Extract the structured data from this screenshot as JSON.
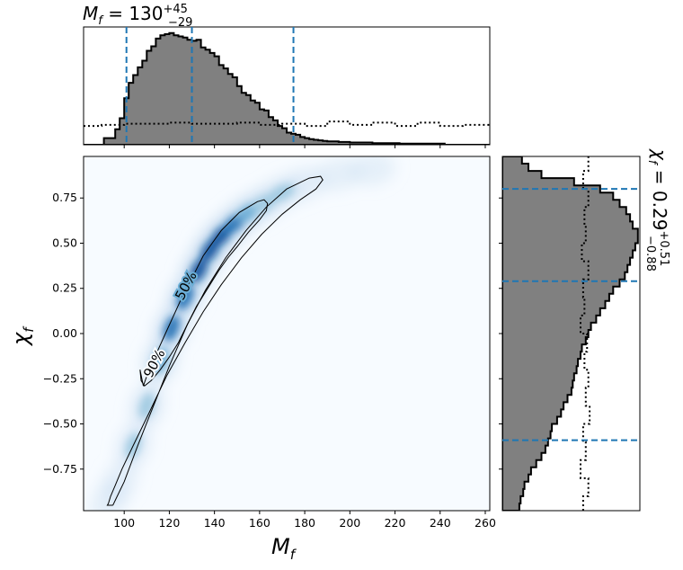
{
  "chart_data": {
    "type": "heatmap",
    "top_title": {
      "base": "M",
      "sub": "f",
      "eq": " = 130",
      "sup": "+45",
      "low": "−29"
    },
    "right_title": {
      "base": "χ",
      "sub": "f",
      "eq": " = 0.29",
      "sup": "+0.51",
      "low": "−0.88"
    },
    "xlabel": {
      "base": "M",
      "sub": "f"
    },
    "ylabel": {
      "base": "χ",
      "sub": "f"
    },
    "xlim": [
      82,
      262
    ],
    "ylim": [
      -0.98,
      0.98
    ],
    "xticks": [
      100,
      120,
      140,
      160,
      180,
      200,
      220,
      240,
      260
    ],
    "yticks": [
      -0.75,
      -0.5,
      -0.25,
      0.0,
      0.25,
      0.5,
      0.75
    ],
    "ytick_labels": [
      "−0.75",
      "−0.50",
      "−0.25",
      "0.00",
      "0.25",
      "0.50",
      "0.75"
    ],
    "mass_quantiles": [
      101,
      130,
      175
    ],
    "spin_quantiles": [
      -0.59,
      0.29,
      0.8
    ],
    "contours": [
      {
        "label": "50%",
        "x": [
          108.5,
          111,
          115,
          119,
          123,
          127,
          131,
          135,
          139,
          143,
          147,
          151,
          155,
          159,
          162,
          163.5,
          163,
          160,
          155,
          150,
          146,
          142,
          139,
          136,
          132,
          128,
          124,
          120,
          116,
          112,
          109,
          107.5,
          107,
          108.5
        ],
        "y": [
          -0.29,
          -0.2,
          -0.09,
          0.02,
          0.13,
          0.24,
          0.33,
          0.43,
          0.5,
          0.57,
          0.62,
          0.67,
          0.7,
          0.73,
          0.74,
          0.72,
          0.68,
          0.63,
          0.56,
          0.48,
          0.42,
          0.35,
          0.29,
          0.23,
          0.15,
          0.05,
          -0.05,
          -0.13,
          -0.2,
          -0.26,
          -0.29,
          -0.26,
          -0.2,
          -0.29
        ]
      },
      {
        "label": "90%",
        "x": [
          95,
          100,
          106,
          113,
          120,
          128,
          136,
          145,
          154,
          163,
          172,
          182,
          187,
          188,
          185,
          178,
          170,
          161,
          152,
          143,
          135,
          127,
          119,
          111,
          104,
          99,
          96,
          94,
          93,
          92.5,
          95
        ],
        "y": [
          -0.95,
          -0.82,
          -0.62,
          -0.4,
          -0.18,
          0.05,
          0.24,
          0.42,
          0.57,
          0.7,
          0.8,
          0.86,
          0.87,
          0.85,
          0.8,
          0.74,
          0.66,
          0.55,
          0.42,
          0.27,
          0.12,
          -0.05,
          -0.23,
          -0.44,
          -0.62,
          -0.75,
          -0.84,
          -0.9,
          -0.94,
          -0.95,
          -0.95
        ]
      }
    ],
    "density_ridge": [
      {
        "x": 93,
        "y": -0.93,
        "w": 0.02
      },
      {
        "x": 98,
        "y": -0.82,
        "w": 0.06
      },
      {
        "x": 104,
        "y": -0.62,
        "w": 0.18
      },
      {
        "x": 110,
        "y": -0.4,
        "w": 0.3
      },
      {
        "x": 116,
        "y": -0.15,
        "w": 0.55
      },
      {
        "x": 121,
        "y": 0.03,
        "w": 0.7
      },
      {
        "x": 127,
        "y": 0.2,
        "w": 0.8
      },
      {
        "x": 133,
        "y": 0.35,
        "w": 0.95
      },
      {
        "x": 138,
        "y": 0.46,
        "w": 1.0
      },
      {
        "x": 143,
        "y": 0.54,
        "w": 0.9
      },
      {
        "x": 149,
        "y": 0.61,
        "w": 0.65
      },
      {
        "x": 155,
        "y": 0.67,
        "w": 0.45
      },
      {
        "x": 162,
        "y": 0.72,
        "w": 0.25
      },
      {
        "x": 170,
        "y": 0.78,
        "w": 0.12
      },
      {
        "x": 180,
        "y": 0.83,
        "w": 0.06
      },
      {
        "x": 195,
        "y": 0.88,
        "w": 0.03
      },
      {
        "x": 210,
        "y": 0.91,
        "w": 0.015
      }
    ],
    "mass_hist": {
      "edges": [
        82,
        91,
        96,
        98,
        100,
        102,
        104,
        106,
        108,
        110,
        112,
        114,
        116,
        118,
        120,
        122,
        124,
        126,
        128,
        130,
        132,
        134,
        136,
        138,
        140,
        142,
        144,
        146,
        148,
        150,
        152,
        154,
        156,
        158,
        160,
        162,
        164,
        166,
        168,
        170,
        172,
        174,
        176,
        178,
        180,
        182,
        184,
        186,
        188,
        190,
        195,
        200,
        210,
        222,
        242,
        262
      ],
      "counts": [
        0,
        0.06,
        0.14,
        0.24,
        0.42,
        0.56,
        0.63,
        0.7,
        0.76,
        0.85,
        0.89,
        0.96,
        0.99,
        1.0,
        1.01,
        0.99,
        0.98,
        0.97,
        0.95,
        0.94,
        0.95,
        0.88,
        0.86,
        0.83,
        0.8,
        0.72,
        0.69,
        0.64,
        0.61,
        0.53,
        0.47,
        0.45,
        0.4,
        0.38,
        0.32,
        0.31,
        0.25,
        0.22,
        0.17,
        0.15,
        0.11,
        0.1,
        0.09,
        0.07,
        0.06,
        0.05,
        0.045,
        0.04,
        0.035,
        0.03,
        0.025,
        0.02,
        0.015,
        0.01,
        0
      ]
    },
    "mass_prior": {
      "x": [
        82,
        90,
        100,
        110,
        120,
        130,
        140,
        150,
        160,
        170,
        180,
        190,
        200,
        210,
        220,
        230,
        240,
        250,
        262
      ],
      "y": [
        0.17,
        0.18,
        0.19,
        0.19,
        0.2,
        0.19,
        0.19,
        0.2,
        0.18,
        0.19,
        0.17,
        0.21,
        0.18,
        0.2,
        0.17,
        0.2,
        0.17,
        0.18,
        0.17
      ]
    },
    "spin_hist": {
      "edges": [
        -0.98,
        -0.94,
        -0.9,
        -0.86,
        -0.82,
        -0.78,
        -0.74,
        -0.7,
        -0.66,
        -0.62,
        -0.58,
        -0.54,
        -0.5,
        -0.46,
        -0.42,
        -0.38,
        -0.34,
        -0.3,
        -0.26,
        -0.22,
        -0.18,
        -0.14,
        -0.1,
        -0.06,
        -0.02,
        0.02,
        0.06,
        0.1,
        0.14,
        0.18,
        0.22,
        0.26,
        0.3,
        0.34,
        0.38,
        0.42,
        0.46,
        0.5,
        0.54,
        0.58,
        0.62,
        0.66,
        0.7,
        0.74,
        0.78,
        0.82,
        0.86,
        0.9,
        0.94,
        0.98
      ],
      "counts": [
        0.13,
        0.14,
        0.16,
        0.17,
        0.2,
        0.22,
        0.26,
        0.3,
        0.33,
        0.35,
        0.37,
        0.38,
        0.42,
        0.45,
        0.47,
        0.5,
        0.53,
        0.54,
        0.55,
        0.57,
        0.58,
        0.6,
        0.61,
        0.64,
        0.66,
        0.68,
        0.72,
        0.75,
        0.79,
        0.82,
        0.85,
        0.9,
        0.94,
        0.96,
        0.98,
        1.0,
        1.02,
        1.04,
        1.04,
        1.0,
        0.98,
        0.95,
        0.9,
        0.85,
        0.75,
        0.55,
        0.3,
        0.2,
        0.15
      ]
    },
    "spin_prior": {
      "y": [
        -0.98,
        -0.9,
        -0.8,
        -0.7,
        -0.6,
        -0.5,
        -0.4,
        -0.3,
        -0.2,
        -0.1,
        0.0,
        0.1,
        0.2,
        0.3,
        0.4,
        0.5,
        0.6,
        0.7,
        0.8,
        0.9,
        0.98
      ],
      "x": [
        0.62,
        0.66,
        0.6,
        0.64,
        0.62,
        0.67,
        0.64,
        0.66,
        0.63,
        0.65,
        0.6,
        0.63,
        0.62,
        0.66,
        0.61,
        0.64,
        0.63,
        0.66,
        0.62,
        0.66,
        0.64
      ]
    }
  }
}
